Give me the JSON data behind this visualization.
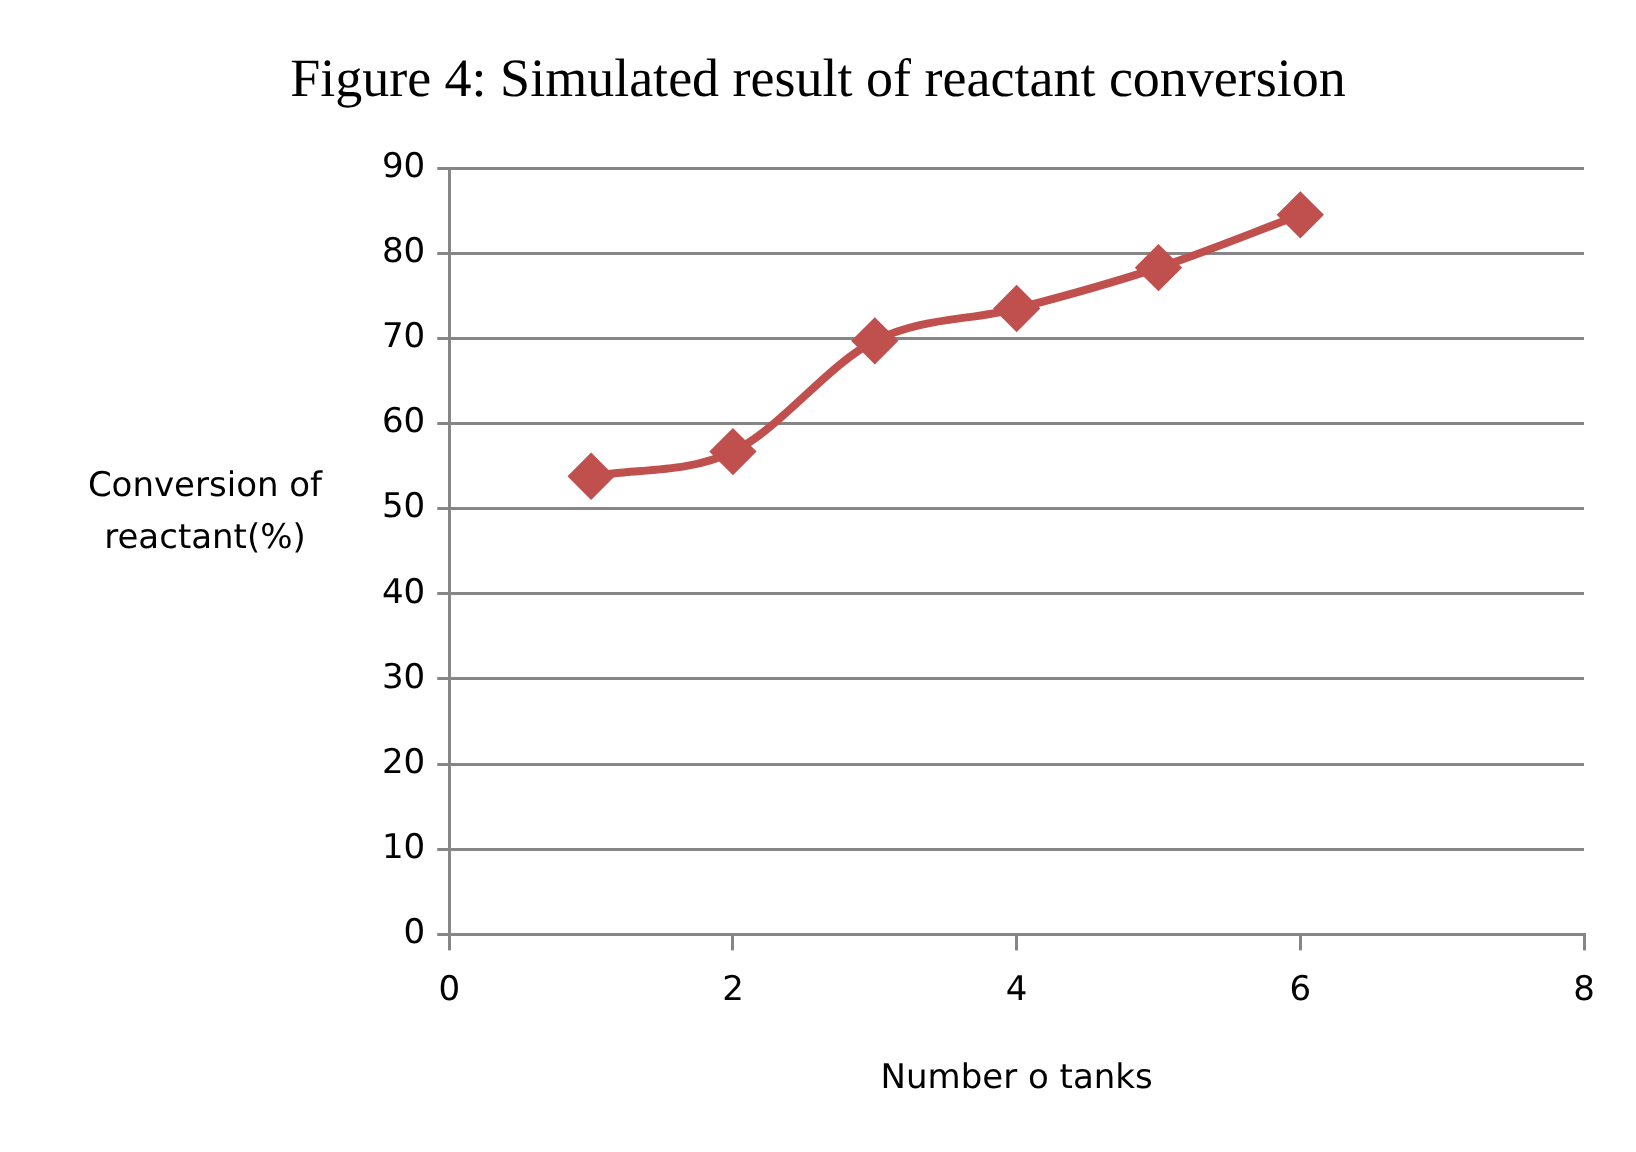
{
  "chart_data": {
    "type": "line",
    "title": "Figure 4: Simulated result of reactant conversion",
    "xlabel": "Number o tanks",
    "ylabel": "Conversion of reactant(%)",
    "x": [
      1,
      2,
      3,
      4,
      5,
      6
    ],
    "series": [
      {
        "color": "#c0504d",
        "values": [
          53.8,
          56.7,
          69.7,
          73.5,
          78.3,
          84.5
        ]
      }
    ],
    "xlim": [
      0,
      8
    ],
    "xticks": [
      0,
      2,
      4,
      6,
      8
    ],
    "ylim": [
      0,
      90
    ],
    "yticks": [
      0,
      10,
      20,
      30,
      40,
      50,
      60,
      70,
      80,
      90
    ],
    "grid": "y",
    "legend": false,
    "marker": "diamond",
    "line_style": "solid"
  }
}
